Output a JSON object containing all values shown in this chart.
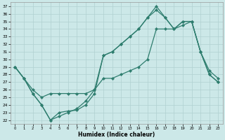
{
  "xlabel": "Humidex (Indice chaleur)",
  "bg_color": "#cce8e8",
  "grid_color": "#b0d0d0",
  "line_color": "#2e7d6e",
  "xlim": [
    -0.5,
    23.5
  ],
  "ylim": [
    21.5,
    37.5
  ],
  "xticks": [
    0,
    1,
    2,
    3,
    4,
    5,
    6,
    7,
    8,
    9,
    10,
    11,
    12,
    13,
    14,
    15,
    16,
    17,
    18,
    19,
    20,
    21,
    22,
    23
  ],
  "yticks": [
    22,
    23,
    24,
    25,
    26,
    27,
    28,
    29,
    30,
    31,
    32,
    33,
    34,
    35,
    36,
    37
  ],
  "series1_x": [
    0,
    1,
    2,
    3,
    4,
    5,
    6,
    7,
    8,
    9,
    10,
    11,
    12,
    13,
    14,
    15,
    16,
    17,
    18,
    19,
    20,
    21,
    22,
    23
  ],
  "series1_y": [
    29.0,
    27.5,
    25.5,
    24.0,
    22.0,
    23.0,
    23.2,
    23.3,
    24.0,
    25.5,
    30.5,
    31.0,
    32.0,
    33.0,
    34.0,
    35.5,
    37.0,
    35.5,
    34.0,
    35.0,
    35.0,
    31.0,
    28.0,
    27.0
  ],
  "series2_x": [
    0,
    1,
    2,
    3,
    4,
    5,
    6,
    7,
    8,
    9,
    10,
    11,
    12,
    13,
    14,
    15,
    16,
    17,
    18,
    19,
    20,
    21,
    22,
    23
  ],
  "series2_y": [
    29.0,
    27.5,
    26.0,
    25.0,
    25.5,
    25.5,
    25.5,
    25.5,
    25.5,
    26.0,
    30.5,
    31.0,
    32.0,
    33.0,
    34.0,
    35.5,
    36.5,
    35.5,
    34.0,
    35.0,
    35.0,
    31.0,
    28.5,
    27.5
  ],
  "series3_x": [
    0,
    1,
    2,
    3,
    4,
    5,
    6,
    7,
    8,
    9,
    10,
    11,
    12,
    13,
    14,
    15,
    16,
    17,
    18,
    19,
    20,
    21,
    22,
    23
  ],
  "series3_y": [
    29.0,
    27.5,
    25.5,
    24.0,
    22.0,
    22.5,
    23.0,
    23.5,
    24.5,
    26.0,
    27.5,
    27.5,
    28.0,
    28.5,
    29.0,
    30.0,
    34.0,
    34.0,
    34.0,
    34.5,
    35.0,
    31.0,
    28.0,
    27.0
  ]
}
